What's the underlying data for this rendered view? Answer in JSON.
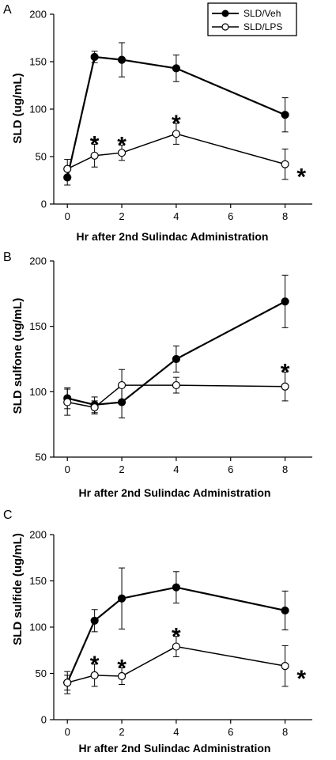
{
  "legend": {
    "entries": [
      "SLD/Veh",
      "SLD/LPS"
    ],
    "position": "top-right"
  },
  "chart_data": [
    {
      "type": "line",
      "panel_label": "A",
      "xlabel": "Hr after 2nd Sulindac Administration",
      "ylabel": "SLD (ug/mL)",
      "xlim": [
        -0.5,
        9
      ],
      "ylim": [
        0,
        200
      ],
      "xticks": [
        0,
        2,
        4,
        6,
        8
      ],
      "yticks": [
        0,
        50,
        100,
        150,
        200
      ],
      "grid": false,
      "series": [
        {
          "name": "SLD/Veh",
          "marker": "filled-circle",
          "x": [
            0,
            1,
            2,
            4,
            8
          ],
          "y": [
            28,
            155,
            152,
            143,
            94
          ],
          "err": [
            8,
            6,
            18,
            14,
            18
          ]
        },
        {
          "name": "SLD/LPS",
          "marker": "open-circle",
          "x": [
            0,
            1,
            2,
            4,
            8
          ],
          "y": [
            37,
            51,
            54,
            74,
            42
          ],
          "err": [
            10,
            12,
            8,
            11,
            16
          ]
        }
      ],
      "annotations": [
        {
          "text": "*",
          "x": 1
        },
        {
          "text": "*",
          "x": 2
        },
        {
          "text": "*",
          "x": 4
        },
        {
          "text": "*",
          "x": 8.6
        }
      ]
    },
    {
      "type": "line",
      "panel_label": "B",
      "xlabel": "Hr after 2nd Sulindac Administration",
      "ylabel": "SLD sulfone (ug/mL)",
      "xlim": [
        -0.5,
        9
      ],
      "ylim": [
        50,
        200
      ],
      "xticks": [
        0,
        2,
        4,
        6,
        8
      ],
      "yticks": [
        50,
        100,
        150,
        200
      ],
      "grid": false,
      "series": [
        {
          "name": "SLD/Veh",
          "marker": "filled-circle",
          "x": [
            0,
            1,
            2,
            4,
            8
          ],
          "y": [
            95,
            90,
            92,
            125,
            169
          ],
          "err": [
            8,
            6,
            12,
            10,
            20
          ]
        },
        {
          "name": "SLD/LPS",
          "marker": "open-circle",
          "x": [
            0,
            1,
            2,
            4,
            8
          ],
          "y": [
            92,
            88,
            105,
            105,
            104
          ],
          "err": [
            10,
            5,
            12,
            6,
            11
          ]
        }
      ],
      "annotations": [
        {
          "text": "*",
          "x": 8
        }
      ]
    },
    {
      "type": "line",
      "panel_label": "C",
      "xlabel": "Hr after 2nd Sulindac Administration",
      "ylabel": "SLD sulfide (ug/mL)",
      "xlim": [
        -0.5,
        9
      ],
      "ylim": [
        0,
        200
      ],
      "xticks": [
        0,
        2,
        4,
        6,
        8
      ],
      "yticks": [
        0,
        50,
        100,
        150,
        200
      ],
      "grid": false,
      "series": [
        {
          "name": "SLD/Veh",
          "marker": "filled-circle",
          "x": [
            0,
            1,
            2,
            4,
            8
          ],
          "y": [
            40,
            107,
            131,
            143,
            118
          ],
          "err": [
            8,
            12,
            33,
            17,
            21
          ]
        },
        {
          "name": "SLD/LPS",
          "marker": "open-circle",
          "x": [
            0,
            1,
            2,
            4,
            8
          ],
          "y": [
            40,
            48,
            47,
            79,
            58
          ],
          "err": [
            12,
            12,
            9,
            11,
            22
          ]
        }
      ],
      "annotations": [
        {
          "text": "*",
          "x": 1
        },
        {
          "text": "*",
          "x": 2
        },
        {
          "text": "*",
          "x": 4
        },
        {
          "text": "*",
          "x": 8.6
        }
      ]
    }
  ]
}
